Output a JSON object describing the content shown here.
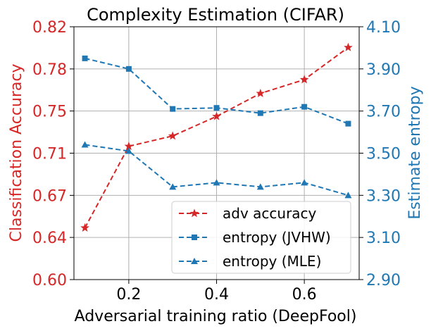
{
  "chart_data": {
    "type": "line",
    "title": "Complexity Estimation (CIFAR)",
    "xlabel": "Adversarial training ratio (DeepFool)",
    "ylabel_left": "Classification Accuracy",
    "ylabel_right": "Estimate entropy",
    "xlim": [
      0.075,
      0.725
    ],
    "ylim_left": [
      0.6,
      0.82
    ],
    "ylim_right": [
      2.9,
      4.1
    ],
    "x_ticks": [
      "0.2",
      "0.4",
      "0.6"
    ],
    "x_tick_values": [
      0.2,
      0.4,
      0.6
    ],
    "y_left_ticks": [
      "0.60",
      "0.64",
      "0.67",
      "0.71",
      "0.75",
      "0.78",
      "0.82"
    ],
    "y_left_tick_values": [
      0.6,
      0.6367,
      0.6733,
      0.71,
      0.7467,
      0.7833,
      0.82
    ],
    "y_right_ticks": [
      "2.90",
      "3.10",
      "3.30",
      "3.50",
      "3.70",
      "3.90",
      "4.10"
    ],
    "y_right_tick_values": [
      2.9,
      3.1,
      3.3,
      3.5,
      3.7,
      3.9,
      4.1
    ],
    "grid": true,
    "legend_position": "bottom-right",
    "x": [
      0.1,
      0.2,
      0.3,
      0.4,
      0.5,
      0.6,
      0.7
    ],
    "series": [
      {
        "name": "adv accuracy",
        "axis": "left",
        "color": "#d62728",
        "marker": "star",
        "values": [
          0.645,
          0.716,
          0.725,
          0.742,
          0.762,
          0.774,
          0.802
        ]
      },
      {
        "name": "entropy (JVHW)",
        "axis": "right",
        "color": "#1f77b4",
        "marker": "square",
        "values": [
          3.95,
          3.9,
          3.71,
          3.715,
          3.69,
          3.72,
          3.64
        ]
      },
      {
        "name": "entropy (MLE)",
        "axis": "right",
        "color": "#1f77b4",
        "marker": "triangle",
        "values": [
          3.54,
          3.51,
          3.34,
          3.36,
          3.34,
          3.36,
          3.3
        ]
      }
    ]
  }
}
